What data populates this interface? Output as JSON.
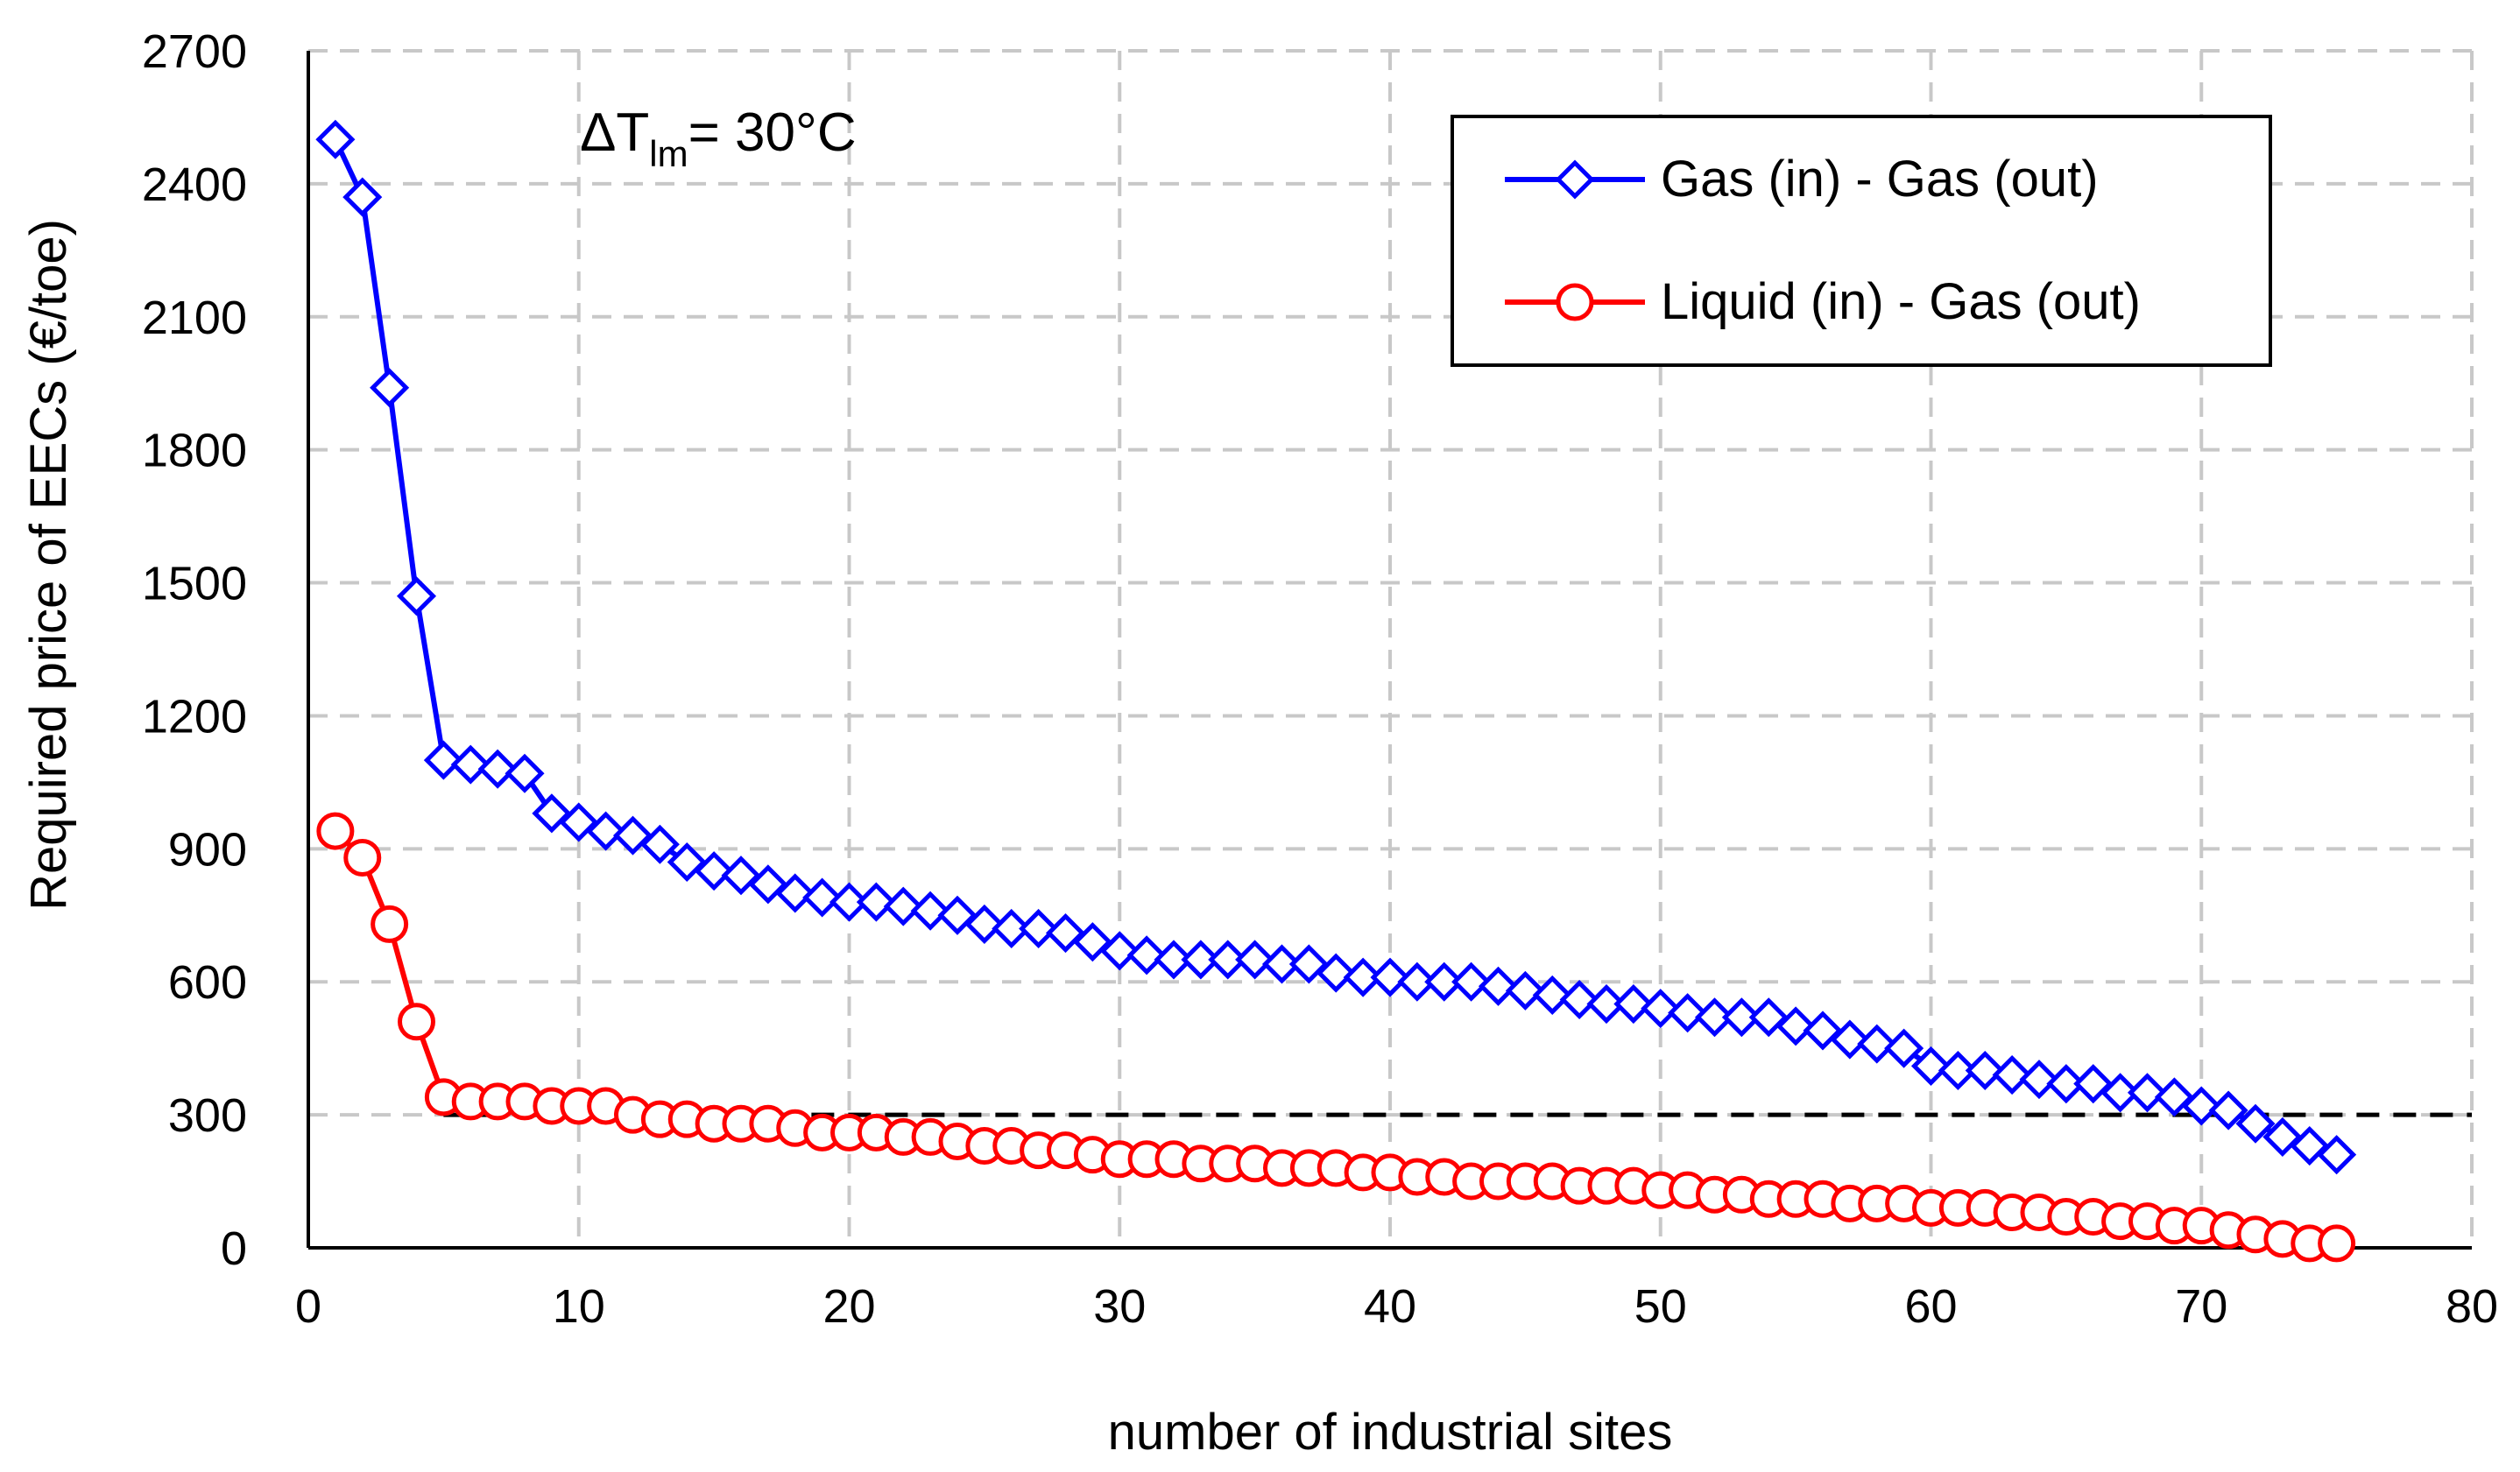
{
  "chart_data": {
    "type": "line",
    "xlabel": "number of industrial sites",
    "ylabel": "Required price of EECs (€/toe)",
    "xlim": [
      0,
      80
    ],
    "ylim": [
      0,
      2700
    ],
    "xticks": [
      0,
      10,
      20,
      30,
      40,
      50,
      60,
      70,
      80
    ],
    "yticks": [
      0,
      300,
      600,
      900,
      1200,
      1500,
      1800,
      2100,
      2400,
      2700
    ],
    "grid": true,
    "legend_position": "top-right",
    "annotation": {
      "prefix": "ΔT",
      "sub": "lm",
      "suffix": "= 30°C"
    },
    "reference_line": {
      "y": 300,
      "style": "dashed",
      "color": "#000000"
    },
    "series": [
      {
        "name": "Gas (in) - Gas (out)",
        "color": "#0000ff",
        "marker": "diamond",
        "x": [
          1,
          2,
          3,
          4,
          5,
          6,
          7,
          8,
          9,
          10,
          11,
          12,
          13,
          14,
          15,
          16,
          17,
          18,
          19,
          20,
          21,
          22,
          23,
          24,
          25,
          26,
          27,
          28,
          29,
          30,
          31,
          32,
          33,
          34,
          35,
          36,
          37,
          38,
          39,
          40,
          41,
          42,
          43,
          44,
          45,
          46,
          47,
          48,
          49,
          50,
          51,
          52,
          53,
          54,
          55,
          56,
          57,
          58,
          59,
          60,
          61,
          62,
          63,
          64,
          65,
          66,
          67,
          68,
          69,
          70,
          71,
          72,
          73,
          74,
          75
        ],
        "values": [
          2500,
          2370,
          1940,
          1470,
          1100,
          1090,
          1080,
          1070,
          980,
          960,
          940,
          930,
          910,
          870,
          850,
          840,
          820,
          800,
          790,
          780,
          780,
          770,
          760,
          750,
          730,
          720,
          720,
          710,
          690,
          670,
          660,
          650,
          650,
          650,
          650,
          640,
          640,
          620,
          610,
          610,
          600,
          600,
          600,
          590,
          580,
          570,
          560,
          550,
          550,
          540,
          530,
          520,
          520,
          520,
          500,
          490,
          470,
          460,
          450,
          410,
          400,
          400,
          390,
          380,
          370,
          370,
          350,
          350,
          340,
          320,
          310,
          280,
          250,
          230,
          210
        ]
      },
      {
        "name": "Liquid (in) - Gas (out)",
        "color": "#ff0000",
        "marker": "circle",
        "x": [
          1,
          2,
          3,
          4,
          5,
          6,
          7,
          8,
          9,
          10,
          11,
          12,
          13,
          14,
          15,
          16,
          17,
          18,
          19,
          20,
          21,
          22,
          23,
          24,
          25,
          26,
          27,
          28,
          29,
          30,
          31,
          32,
          33,
          34,
          35,
          36,
          37,
          38,
          39,
          40,
          41,
          42,
          43,
          44,
          45,
          46,
          47,
          48,
          49,
          50,
          51,
          52,
          53,
          54,
          55,
          56,
          57,
          58,
          59,
          60,
          61,
          62,
          63,
          64,
          65,
          66,
          67,
          68,
          69,
          70,
          71,
          72,
          73,
          74,
          75
        ],
        "values": [
          940,
          880,
          730,
          510,
          340,
          330,
          330,
          330,
          320,
          320,
          320,
          300,
          290,
          290,
          280,
          280,
          280,
          270,
          260,
          260,
          260,
          250,
          250,
          240,
          230,
          230,
          220,
          220,
          210,
          200,
          200,
          200,
          190,
          190,
          190,
          180,
          180,
          180,
          170,
          170,
          160,
          160,
          150,
          150,
          150,
          150,
          140,
          140,
          140,
          130,
          130,
          120,
          120,
          110,
          110,
          110,
          100,
          100,
          100,
          90,
          90,
          90,
          80,
          80,
          70,
          70,
          60,
          60,
          50,
          50,
          40,
          30,
          20,
          10,
          10
        ]
      }
    ]
  }
}
